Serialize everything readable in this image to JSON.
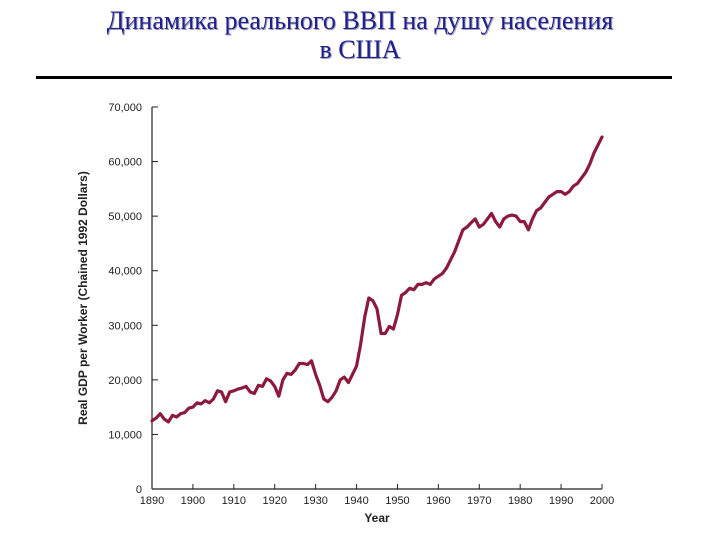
{
  "slide": {
    "title_line1": "Динамика реального ВВП на душу населения",
    "title_line2": "в США"
  },
  "chart_data": {
    "type": "line",
    "title": "",
    "xlabel": "Year",
    "ylabel": "Real GDP per Worker (Chained 1992 Dollars)",
    "xlim": [
      1890,
      2000
    ],
    "ylim": [
      0,
      70000
    ],
    "x_ticks": [
      1890,
      1900,
      1910,
      1920,
      1930,
      1940,
      1950,
      1960,
      1970,
      1980,
      1990,
      2000
    ],
    "y_ticks": [
      0,
      10000,
      20000,
      30000,
      40000,
      50000,
      60000,
      70000
    ],
    "y_tick_labels": [
      "0",
      "10,000",
      "20,000",
      "30,000",
      "40,000",
      "50,000",
      "60,000",
      "70,000"
    ],
    "line_color": "#8b1a3c",
    "grid": false,
    "series": [
      {
        "x": [
          1890,
          1891,
          1892,
          1893,
          1894,
          1895,
          1896,
          1897,
          1898,
          1899,
          1900,
          1901,
          1902,
          1903,
          1904,
          1905,
          1906,
          1907,
          1908,
          1909,
          1910,
          1911,
          1912,
          1913,
          1914,
          1915,
          1916,
          1917,
          1918,
          1919,
          1920,
          1921,
          1922,
          1923,
          1924,
          1925,
          1926,
          1927,
          1928,
          1929,
          1930,
          1931,
          1932,
          1933,
          1934,
          1935,
          1936,
          1937,
          1938,
          1939,
          1940,
          1941,
          1942,
          1943,
          1944,
          1945,
          1946,
          1947,
          1948,
          1949,
          1950,
          1951,
          1952,
          1953,
          1954,
          1955,
          1956,
          1957,
          1958,
          1959,
          1960,
          1961,
          1962,
          1963,
          1964,
          1965,
          1966,
          1967,
          1968,
          1969,
          1970,
          1971,
          1972,
          1973,
          1974,
          1975,
          1976,
          1977,
          1978,
          1979,
          1980,
          1981,
          1982,
          1983,
          1984,
          1985,
          1986,
          1987,
          1988,
          1989,
          1990,
          1991,
          1992,
          1993,
          1994,
          1995,
          1996,
          1997,
          1998,
          1999,
          2000
        ],
        "y": [
          12500,
          13000,
          13800,
          12800,
          12300,
          13500,
          13200,
          13800,
          14000,
          14800,
          15000,
          15800,
          15600,
          16200,
          15800,
          16500,
          18000,
          17800,
          16000,
          17800,
          18000,
          18300,
          18500,
          18800,
          17800,
          17500,
          19000,
          18800,
          20200,
          19800,
          18800,
          17000,
          20000,
          21200,
          21000,
          21800,
          23000,
          23000,
          22800,
          23500,
          21000,
          19000,
          16500,
          16000,
          16800,
          18000,
          20000,
          20500,
          19500,
          21000,
          22500,
          26500,
          31500,
          35000,
          34500,
          33000,
          28500,
          28500,
          29800,
          29300,
          32000,
          35500,
          36000,
          36800,
          36500,
          37500,
          37500,
          37800,
          37500,
          38500,
          39000,
          39500,
          40500,
          42000,
          43500,
          45500,
          47500,
          48000,
          48800,
          49500,
          48000,
          48500,
          49500,
          50500,
          49000,
          48000,
          49500,
          50000,
          50200,
          50000,
          49000,
          49000,
          47500,
          49500,
          51000,
          51500,
          52500,
          53500,
          54000,
          54500,
          54500,
          54000,
          54500,
          55500,
          56000,
          57000,
          58000,
          59500,
          61500,
          63000,
          64500
        ]
      }
    ]
  }
}
